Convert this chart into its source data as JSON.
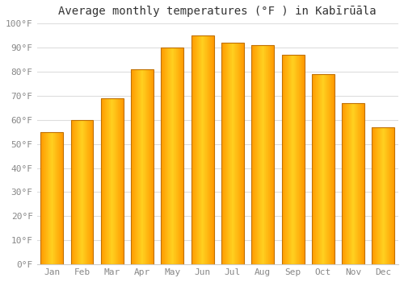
{
  "title": "Average monthly temperatures (°F ) in Kabīrūāla",
  "months": [
    "Jan",
    "Feb",
    "Mar",
    "Apr",
    "May",
    "Jun",
    "Jul",
    "Aug",
    "Sep",
    "Oct",
    "Nov",
    "Dec"
  ],
  "values": [
    55,
    60,
    69,
    81,
    90,
    95,
    92,
    91,
    87,
    79,
    67,
    57
  ],
  "bar_color_center": "#FFD040",
  "bar_color_edge": "#F5A000",
  "bar_outline_color": "#C07000",
  "background_color": "#FFFFFF",
  "grid_color": "#DDDDDD",
  "ylim": [
    0,
    100
  ],
  "yticks": [
    0,
    10,
    20,
    30,
    40,
    50,
    60,
    70,
    80,
    90,
    100
  ],
  "ytick_labels": [
    "0°F",
    "10°F",
    "20°F",
    "30°F",
    "40°F",
    "50°F",
    "60°F",
    "70°F",
    "80°F",
    "90°F",
    "100°F"
  ],
  "title_fontsize": 10,
  "tick_fontsize": 8,
  "bar_width": 0.75
}
